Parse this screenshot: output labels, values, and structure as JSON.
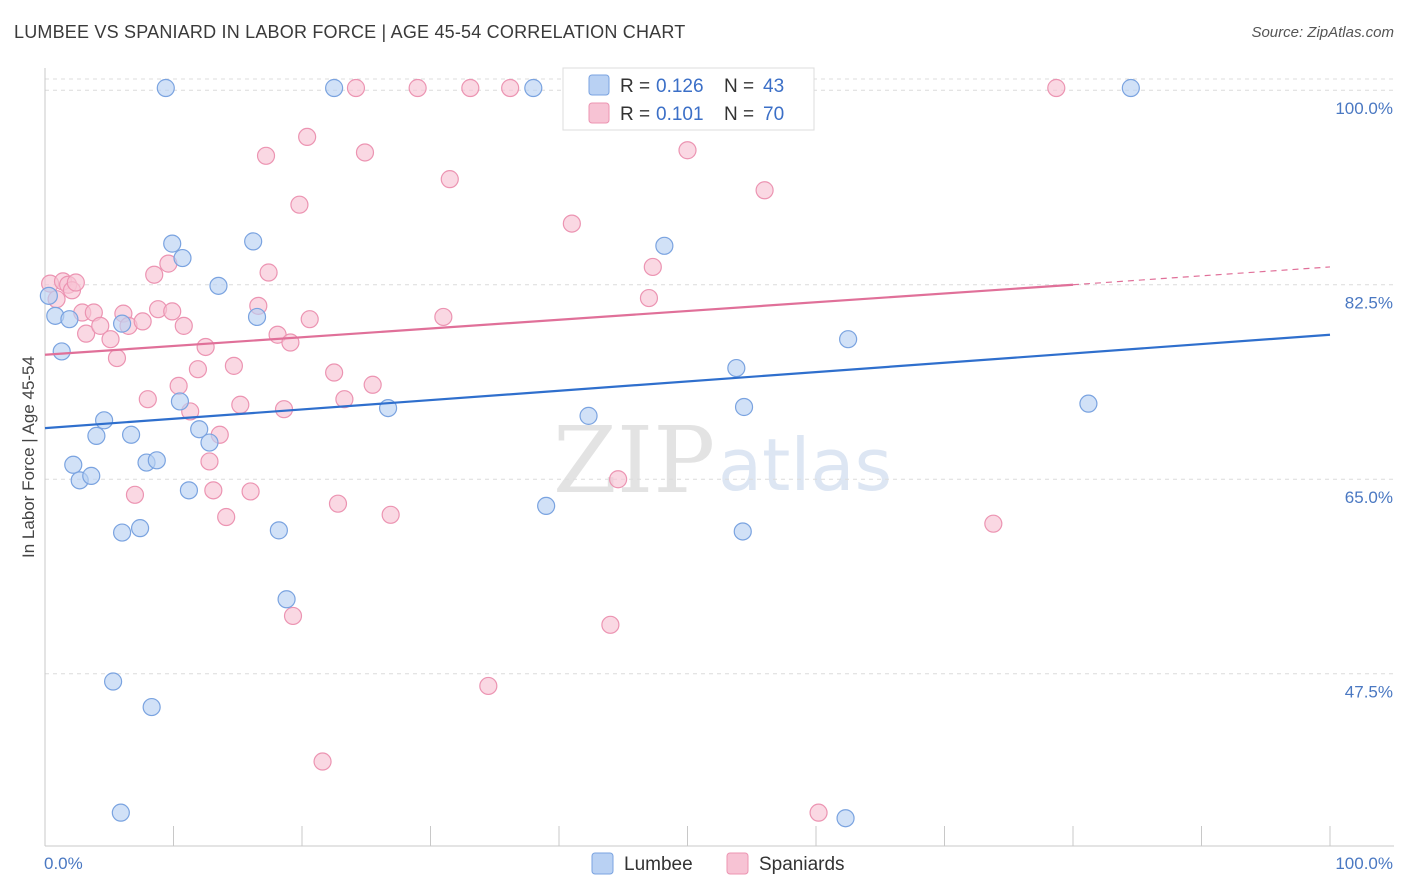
{
  "header": {
    "title": "LUMBEE VS SPANIARD IN LABOR FORCE | AGE 45-54 CORRELATION CHART",
    "source": "Source: ZipAtlas.com"
  },
  "colors": {
    "lumbee_fill": "#b9d1f3",
    "lumbee_stroke": "#7aa3e0",
    "lumbee_line": "#2f6fcd",
    "spaniards_fill": "#f7c3d4",
    "spaniards_stroke": "#ec94b2",
    "spaniards_line": "#e07099",
    "grid": "#dcdcdc",
    "tick_text": "#4a78c2"
  },
  "watermark": {
    "zip": "ZIP",
    "atlas": "atlas"
  },
  "legend": {
    "rows": [
      {
        "r_label": "R =",
        "r_value": "0.126",
        "n_label": "N =",
        "n_value": "43"
      },
      {
        "r_label": "R =",
        "r_value": "0.101",
        "n_label": "N =",
        "n_value": "70"
      }
    ]
  },
  "bottom_legend": [
    "Lumbee",
    "Spaniards"
  ],
  "chart_data": {
    "type": "scatter",
    "title": "LUMBEE VS SPANIARD IN LABOR FORCE | AGE 45-54 CORRELATION CHART",
    "ylabel": "In Labor Force | Age 45-54",
    "xlabel": "",
    "xlim": [
      0,
      100
    ],
    "ylim": [
      32,
      102
    ],
    "x_tick_labels": [
      "0.0%",
      "100.0%"
    ],
    "y_ticks": [
      47.5,
      65.0,
      82.5,
      100.0
    ],
    "y_tick_labels": [
      "47.5%",
      "65.0%",
      "82.5%",
      "100.0%"
    ],
    "grid": true,
    "legend_position": "top-center",
    "series": [
      {
        "name": "Lumbee",
        "r": 0.126,
        "n": 43,
        "trend": {
          "x": [
            0,
            100
          ],
          "y": [
            69.6,
            78.0
          ]
        },
        "points": [
          [
            0.3,
            81.5
          ],
          [
            0.8,
            79.7
          ],
          [
            1.3,
            76.5
          ],
          [
            1.9,
            79.4
          ],
          [
            2.2,
            66.3
          ],
          [
            2.7,
            64.9
          ],
          [
            3.6,
            65.3
          ],
          [
            4.0,
            68.9
          ],
          [
            4.6,
            70.3
          ],
          [
            5.3,
            46.8
          ],
          [
            5.9,
            35.0
          ],
          [
            6.0,
            60.2
          ],
          [
            6.7,
            69.0
          ],
          [
            7.4,
            60.6
          ],
          [
            7.9,
            66.5
          ],
          [
            8.3,
            44.5
          ],
          [
            8.7,
            66.7
          ],
          [
            9.4,
            100.2
          ],
          [
            9.9,
            86.2
          ],
          [
            10.7,
            84.9
          ],
          [
            10.5,
            72.0
          ],
          [
            11.2,
            64.0
          ],
          [
            12.0,
            69.5
          ],
          [
            12.8,
            68.3
          ],
          [
            13.5,
            82.4
          ],
          [
            16.2,
            86.4
          ],
          [
            16.5,
            79.6
          ],
          [
            18.2,
            60.4
          ],
          [
            18.8,
            54.2
          ],
          [
            22.5,
            100.2
          ],
          [
            26.7,
            71.4
          ],
          [
            38.0,
            100.2
          ],
          [
            39.0,
            62.6
          ],
          [
            42.3,
            70.7
          ],
          [
            48.2,
            86.0
          ],
          [
            53.8,
            75.0
          ],
          [
            54.3,
            60.3
          ],
          [
            54.4,
            71.5
          ],
          [
            62.5,
            77.6
          ],
          [
            62.3,
            34.5
          ],
          [
            81.2,
            71.8
          ],
          [
            84.5,
            100.2
          ],
          [
            6.0,
            79.0
          ]
        ]
      },
      {
        "name": "Spaniards",
        "r": 0.101,
        "n": 70,
        "trend": {
          "x": [
            0,
            80
          ],
          "y": [
            76.2,
            82.5
          ],
          "dashed_to": {
            "x": 100,
            "y": 84.1
          }
        },
        "points": [
          [
            0.4,
            82.6
          ],
          [
            0.9,
            81.2
          ],
          [
            1.4,
            82.8
          ],
          [
            1.8,
            82.5
          ],
          [
            2.1,
            82.0
          ],
          [
            2.4,
            82.7
          ],
          [
            2.9,
            80.0
          ],
          [
            3.2,
            78.1
          ],
          [
            3.8,
            80.0
          ],
          [
            4.3,
            78.8
          ],
          [
            5.1,
            77.6
          ],
          [
            5.6,
            75.9
          ],
          [
            6.1,
            79.9
          ],
          [
            6.5,
            78.8
          ],
          [
            7.0,
            63.6
          ],
          [
            7.6,
            79.2
          ],
          [
            8.0,
            72.2
          ],
          [
            8.5,
            83.4
          ],
          [
            8.8,
            80.3
          ],
          [
            9.6,
            84.4
          ],
          [
            9.9,
            80.1
          ],
          [
            10.4,
            73.4
          ],
          [
            10.8,
            78.8
          ],
          [
            11.3,
            71.1
          ],
          [
            11.9,
            74.9
          ],
          [
            12.5,
            76.9
          ],
          [
            12.8,
            66.6
          ],
          [
            13.1,
            64.0
          ],
          [
            13.6,
            69.0
          ],
          [
            14.1,
            61.6
          ],
          [
            14.7,
            75.2
          ],
          [
            15.2,
            71.7
          ],
          [
            16.0,
            63.9
          ],
          [
            16.6,
            80.6
          ],
          [
            17.2,
            94.1
          ],
          [
            17.4,
            83.6
          ],
          [
            18.1,
            78.0
          ],
          [
            18.6,
            71.3
          ],
          [
            19.1,
            77.3
          ],
          [
            19.3,
            52.7
          ],
          [
            19.8,
            89.7
          ],
          [
            20.4,
            95.8
          ],
          [
            20.6,
            79.4
          ],
          [
            21.6,
            39.6
          ],
          [
            22.5,
            74.6
          ],
          [
            22.8,
            62.8
          ],
          [
            23.3,
            72.2
          ],
          [
            24.2,
            100.2
          ],
          [
            24.9,
            94.4
          ],
          [
            25.5,
            73.5
          ],
          [
            26.9,
            61.8
          ],
          [
            29.0,
            100.2
          ],
          [
            31.0,
            79.6
          ],
          [
            31.5,
            92.0
          ],
          [
            33.1,
            100.2
          ],
          [
            34.5,
            46.4
          ],
          [
            36.2,
            100.2
          ],
          [
            41.0,
            88.0
          ],
          [
            42.3,
            100.2
          ],
          [
            44.0,
            51.9
          ],
          [
            44.6,
            65.0
          ],
          [
            47.0,
            81.3
          ],
          [
            47.3,
            84.1
          ],
          [
            50.0,
            94.6
          ],
          [
            52.0,
            100.2
          ],
          [
            56.0,
            91.0
          ],
          [
            56.5,
            100.2
          ],
          [
            60.2,
            35.0
          ],
          [
            73.8,
            61.0
          ],
          [
            78.7,
            100.2
          ]
        ]
      }
    ]
  }
}
